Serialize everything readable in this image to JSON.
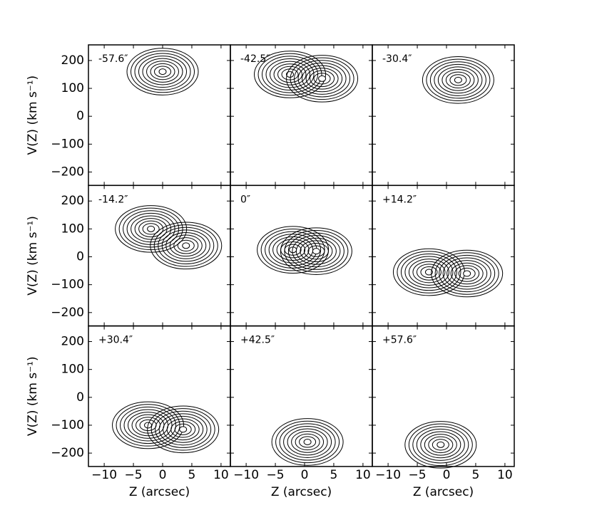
{
  "chart_data": [
    {
      "type": "contour",
      "label": "-57.6″",
      "xlim": [
        -12.7,
        11.6
      ],
      "ylim": [
        -248,
        256
      ],
      "xticks": [
        -10,
        -5,
        0,
        5,
        10
      ],
      "yticks": [
        {
          "value": -200,
          "label": "−200"
        },
        {
          "value": -100,
          "label": "−100"
        },
        {
          "value": 0,
          "label": "0"
        },
        {
          "value": 100,
          "label": "100"
        },
        {
          "value": 200,
          "label": "200"
        }
      ],
      "ylabel": "V(Z) (km s⁻¹)",
      "peaks": [
        {
          "x": 0,
          "y": 160
        }
      ]
    },
    {
      "type": "contour",
      "label": "-42.5″",
      "xlim": [
        -12.7,
        11.6
      ],
      "ylim": [
        -248,
        256
      ],
      "xticks": [
        -10,
        -5,
        0,
        5,
        10
      ],
      "yticks": [
        -200,
        -100,
        0,
        100,
        200
      ],
      "peaks": [
        {
          "x": -2.5,
          "y": 150
        },
        {
          "x": 3,
          "y": 135
        }
      ]
    },
    {
      "type": "contour",
      "label": "-30.4″",
      "xlim": [
        -12.7,
        11.6
      ],
      "ylim": [
        -248,
        256
      ],
      "xticks": [
        -10,
        -5,
        0,
        5,
        10
      ],
      "yticks": [
        -200,
        -100,
        0,
        100,
        200
      ],
      "peaks": [
        {
          "x": 2,
          "y": 130
        }
      ]
    },
    {
      "type": "contour",
      "label": "-14.2″",
      "xlim": [
        -12.7,
        11.6
      ],
      "ylim": [
        -248,
        256
      ],
      "xticks": [
        -10,
        -5,
        0,
        5,
        10
      ],
      "yticks": [
        {
          "value": -200,
          "label": "−200"
        },
        {
          "value": -100,
          "label": "−100"
        },
        {
          "value": 0,
          "label": "0"
        },
        {
          "value": 100,
          "label": "100"
        },
        {
          "value": 200,
          "label": "200"
        }
      ],
      "ylabel": "V(Z) (km s⁻¹)",
      "peaks": [
        {
          "x": 4,
          "y": 40
        },
        {
          "x": -2,
          "y": 100
        }
      ]
    },
    {
      "type": "contour",
      "label": "0″",
      "xlim": [
        -12.7,
        11.6
      ],
      "ylim": [
        -248,
        256
      ],
      "xticks": [
        -10,
        -5,
        0,
        5,
        10
      ],
      "yticks": [
        -200,
        -100,
        0,
        100,
        200
      ],
      "peaks": [
        {
          "x": -2,
          "y": 25
        },
        {
          "x": 2,
          "y": 20
        }
      ]
    },
    {
      "type": "contour",
      "label": "+14.2″",
      "xlim": [
        -12.7,
        11.6
      ],
      "ylim": [
        -248,
        256
      ],
      "xticks": [
        -10,
        -5,
        0,
        5,
        10
      ],
      "yticks": [
        -200,
        -100,
        0,
        100,
        200
      ],
      "peaks": [
        {
          "x": -3,
          "y": -55
        },
        {
          "x": 3.5,
          "y": -60
        }
      ]
    },
    {
      "type": "contour",
      "label": "+30.4″",
      "xlim": [
        -12.7,
        11.6
      ],
      "ylim": [
        -248,
        256
      ],
      "xticks": [
        {
          "value": -10,
          "label": "−10"
        },
        {
          "value": -5,
          "label": "−5"
        },
        {
          "value": 0,
          "label": "0"
        },
        {
          "value": 5,
          "label": "5"
        },
        {
          "value": 10,
          "label": "10"
        }
      ],
      "yticks": [
        {
          "value": -200,
          "label": "−200"
        },
        {
          "value": -100,
          "label": "−100"
        },
        {
          "value": 0,
          "label": "0"
        },
        {
          "value": 100,
          "label": "100"
        },
        {
          "value": 200,
          "label": "200"
        }
      ],
      "xlabel": "Z (arcsec)",
      "ylabel": "V(Z) (km s⁻¹)",
      "peaks": [
        {
          "x": -2.5,
          "y": -100
        },
        {
          "x": 3.5,
          "y": -115
        }
      ]
    },
    {
      "type": "contour",
      "label": "+42.5″",
      "xlim": [
        -12.7,
        11.6
      ],
      "ylim": [
        -248,
        256
      ],
      "xticks": [
        {
          "value": -10,
          "label": "−10"
        },
        {
          "value": -5,
          "label": "−5"
        },
        {
          "value": 0,
          "label": "0"
        },
        {
          "value": 5,
          "label": "5"
        },
        {
          "value": 10,
          "label": "10"
        }
      ],
      "yticks": [
        -200,
        -100,
        0,
        100,
        200
      ],
      "xlabel": "Z (arcsec)",
      "peaks": [
        {
          "x": 0.5,
          "y": -160
        }
      ]
    },
    {
      "type": "contour",
      "label": "+57.6″",
      "xlim": [
        -12.7,
        11.6
      ],
      "ylim": [
        -248,
        256
      ],
      "xticks": [
        {
          "value": -10,
          "label": "−10"
        },
        {
          "value": -5,
          "label": "−5"
        },
        {
          "value": 0,
          "label": "0"
        },
        {
          "value": 5,
          "label": "5"
        },
        {
          "value": 10,
          "label": "10"
        }
      ],
      "yticks": [
        -200,
        -100,
        0,
        100,
        200
      ],
      "xlabel": "Z (arcsec)",
      "peaks": [
        {
          "x": -1,
          "y": -170
        }
      ]
    }
  ]
}
